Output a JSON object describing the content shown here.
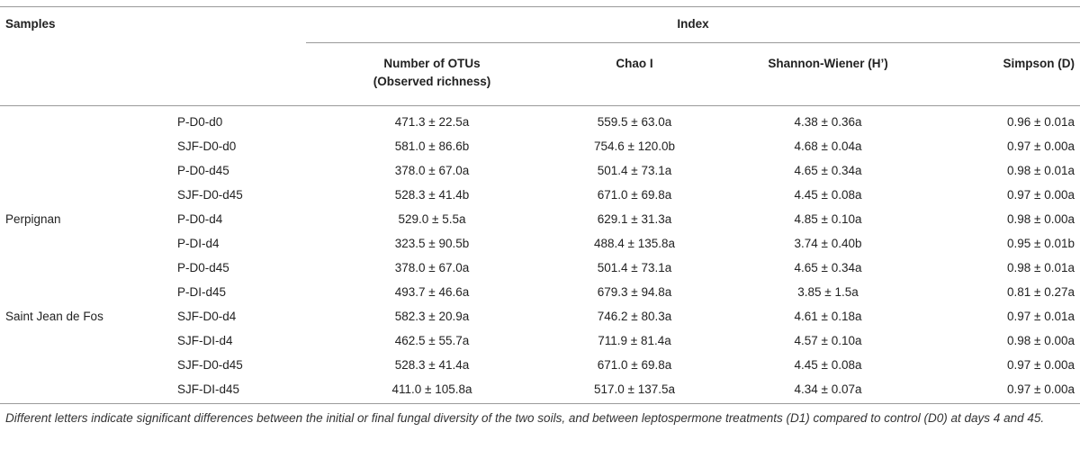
{
  "table": {
    "headers": {
      "samples": "Samples",
      "index": "Index",
      "otus_line1": "Number of OTUs",
      "otus_line2": "(Observed richness)",
      "chao": "Chao I",
      "shannon": "Shannon-Wiener (H’)",
      "simpson": "Simpson (D)"
    },
    "groups": {
      "perpignan": "Perpignan",
      "saint_jean": "Saint Jean de Fos"
    },
    "rows": [
      {
        "sample": "P-D0-d0",
        "otus": "471.3 ± 22.5a",
        "chao": "559.5 ± 63.0a",
        "shannon": "4.38 ± 0.36a",
        "simpson": "0.96 ± 0.01a"
      },
      {
        "sample": "SJF-D0-d0",
        "otus": "581.0 ± 86.6b",
        "chao": "754.6 ± 120.0b",
        "shannon": "4.68 ± 0.04a",
        "simpson": "0.97 ± 0.00a"
      },
      {
        "sample": "P-D0-d45",
        "otus": "378.0 ± 67.0a",
        "chao": "501.4 ± 73.1a",
        "shannon": "4.65 ± 0.34a",
        "simpson": "0.98 ± 0.01a"
      },
      {
        "sample": "SJF-D0-d45",
        "otus": "528.3 ± 41.4b",
        "chao": "671.0 ± 69.8a",
        "shannon": "4.45 ± 0.08a",
        "simpson": "0.97 ± 0.00a"
      },
      {
        "sample": "P-D0-d4",
        "otus": "529.0 ± 5.5a",
        "chao": "629.1 ± 31.3a",
        "shannon": "4.85 ± 0.10a",
        "simpson": "0.98 ± 0.00a"
      },
      {
        "sample": "P-DI-d4",
        "otus": "323.5 ± 90.5b",
        "chao": "488.4 ± 135.8a",
        "shannon": "3.74 ± 0.40b",
        "simpson": "0.95 ± 0.01b"
      },
      {
        "sample": "P-D0-d45",
        "otus": "378.0 ± 67.0a",
        "chao": "501.4 ± 73.1a",
        "shannon": "4.65 ± 0.34a",
        "simpson": "0.98 ± 0.01a"
      },
      {
        "sample": "P-DI-d45",
        "otus": "493.7 ± 46.6a",
        "chao": "679.3 ± 94.8a",
        "shannon": "3.85 ± 1.5a",
        "simpson": "0.81 ± 0.27a"
      },
      {
        "sample": "SJF-D0-d4",
        "otus": "582.3 ± 20.9a",
        "chao": "746.2 ± 80.3a",
        "shannon": "4.61 ± 0.18a",
        "simpson": "0.97 ± 0.01a"
      },
      {
        "sample": "SJF-DI-d4",
        "otus": "462.5 ± 55.7a",
        "chao": "711.9 ± 81.4a",
        "shannon": "4.57 ± 0.10a",
        "simpson": "0.98 ± 0.00a"
      },
      {
        "sample": "SJF-D0-d45",
        "otus": "528.3 ± 41.4a",
        "chao": "671.0 ± 69.8a",
        "shannon": "4.45 ± 0.08a",
        "simpson": "0.97 ± 0.00a"
      },
      {
        "sample": "SJF-DI-d45",
        "otus": "411.0 ± 105.8a",
        "chao": "517.0 ± 137.5a",
        "shannon": "4.34 ± 0.07a",
        "simpson": "0.97 ± 0.00a"
      }
    ],
    "footnote": "Different letters indicate significant differences between the initial or final fungal diversity of the two soils, and between leptospermone treatments (D1) compared to control (D0) at days 4 and 45."
  }
}
